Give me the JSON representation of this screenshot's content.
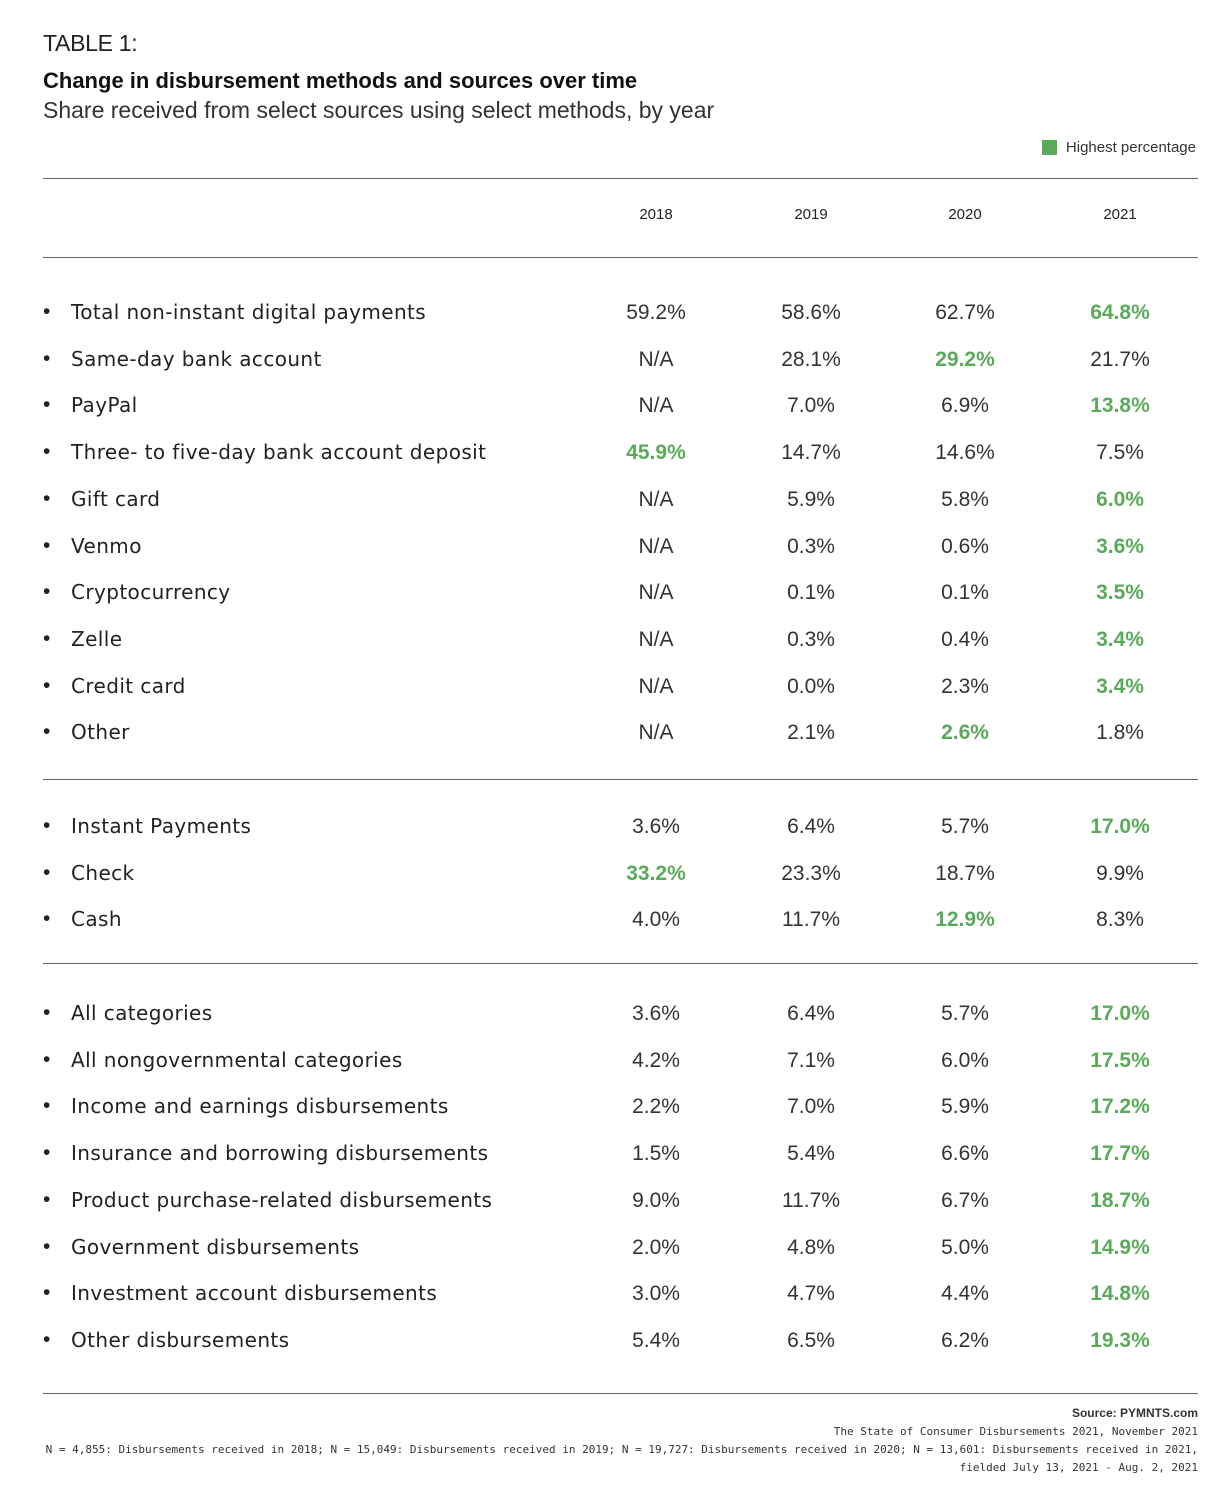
{
  "table_label": "TABLE 1:",
  "title": "Change in disbursement methods and sources over time",
  "subtitle": "Share received from select sources using select methods, by year",
  "legend": {
    "label": "Highest percentage",
    "color": "#5aaa5a"
  },
  "bullet": "•",
  "chart_data": {
    "type": "table",
    "columns": [
      "2018",
      "2019",
      "2020",
      "2021"
    ],
    "groups": [
      {
        "rows": [
          {
            "name": "Total non-instant digital payments",
            "values": [
              "59.2%",
              "58.6%",
              "62.7%",
              "64.8%"
            ],
            "highlight": 3
          },
          {
            "name": "Same-day bank account",
            "values": [
              "N/A",
              "28.1%",
              "29.2%",
              "21.7%"
            ],
            "highlight": 2
          },
          {
            "name": "PayPal",
            "values": [
              "N/A",
              "7.0%",
              "6.9%",
              "13.8%"
            ],
            "highlight": 3
          },
          {
            "name": "Three- to five-day bank account deposit",
            "values": [
              "45.9%",
              "14.7%",
              "14.6%",
              "7.5%"
            ],
            "highlight": 0
          },
          {
            "name": "Gift card",
            "values": [
              "N/A",
              "5.9%",
              "5.8%",
              "6.0%"
            ],
            "highlight": 3
          },
          {
            "name": "Venmo",
            "values": [
              "N/A",
              "0.3%",
              "0.6%",
              "3.6%"
            ],
            "highlight": 3
          },
          {
            "name": "Cryptocurrency",
            "values": [
              "N/A",
              "0.1%",
              "0.1%",
              "3.5%"
            ],
            "highlight": 3
          },
          {
            "name": "Zelle",
            "values": [
              "N/A",
              "0.3%",
              "0.4%",
              "3.4%"
            ],
            "highlight": 3
          },
          {
            "name": "Credit card",
            "values": [
              "N/A",
              "0.0%",
              "2.3%",
              "3.4%"
            ],
            "highlight": 3
          },
          {
            "name": "Other",
            "values": [
              "N/A",
              "2.1%",
              "2.6%",
              "1.8%"
            ],
            "highlight": 2
          }
        ]
      },
      {
        "rows": [
          {
            "name": "Instant Payments",
            "values": [
              "3.6%",
              "6.4%",
              "5.7%",
              "17.0%"
            ],
            "highlight": 3
          },
          {
            "name": "Check",
            "values": [
              "33.2%",
              "23.3%",
              "18.7%",
              "9.9%"
            ],
            "highlight": 0
          },
          {
            "name": "Cash",
            "values": [
              "4.0%",
              "11.7%",
              "12.9%",
              "8.3%"
            ],
            "highlight": 2
          }
        ]
      },
      {
        "rows": [
          {
            "name": "All categories",
            "values": [
              "3.6%",
              "6.4%",
              "5.7%",
              "17.0%"
            ],
            "highlight": 3
          },
          {
            "name": "All nongovernmental categories",
            "values": [
              "4.2%",
              "7.1%",
              "6.0%",
              "17.5%"
            ],
            "highlight": 3
          },
          {
            "name": "Income and earnings disbursements",
            "values": [
              "2.2%",
              "7.0%",
              "5.9%",
              "17.2%"
            ],
            "highlight": 3
          },
          {
            "name": "Insurance and borrowing disbursements",
            "values": [
              "1.5%",
              "5.4%",
              "6.6%",
              "17.7%"
            ],
            "highlight": 3
          },
          {
            "name": "Product purchase-related disbursements",
            "values": [
              "9.0%",
              "11.7%",
              "6.7%",
              "18.7%"
            ],
            "highlight": 3
          },
          {
            "name": "Government disbursements",
            "values": [
              "2.0%",
              "4.8%",
              "5.0%",
              "14.9%"
            ],
            "highlight": 3
          },
          {
            "name": "Investment account disbursements",
            "values": [
              "3.0%",
              "4.7%",
              "4.4%",
              "14.8%"
            ],
            "highlight": 3
          },
          {
            "name": "Other disbursements",
            "values": [
              "5.4%",
              "6.5%",
              "6.2%",
              "19.3%"
            ],
            "highlight": 3
          }
        ]
      }
    ]
  },
  "footer": {
    "source": "Source: PYMNTS.com",
    "report": "The State of Consumer Disbursements 2021, November 2021",
    "note_line1": "N = 4,855: Disbursements received in 2018; N = 15,049: Disbursements received in 2019; N = 19,727: Disbursements received in 2020; N = 13,601: Disbursements received in 2021,",
    "note_line2": "fielded July 13, 2021 - Aug. 2, 2021"
  }
}
